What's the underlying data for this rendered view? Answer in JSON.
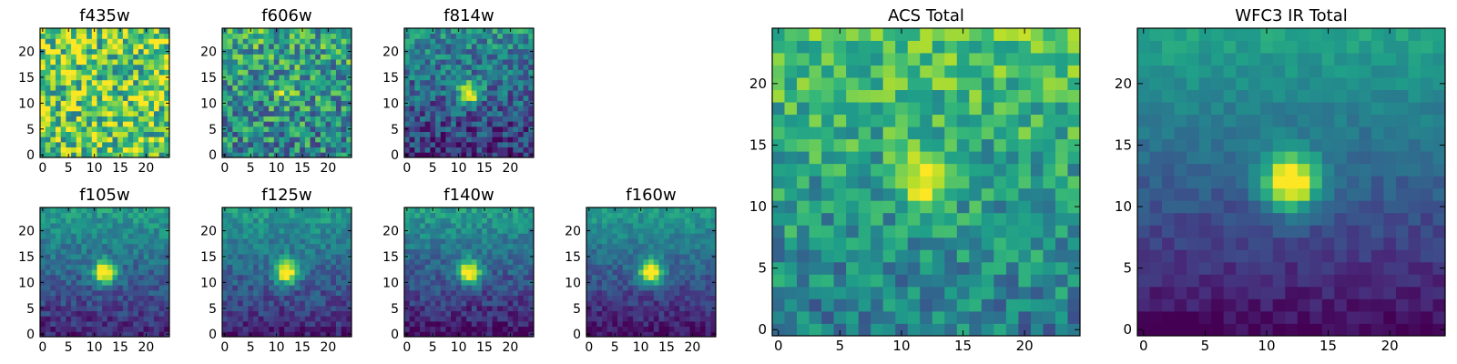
{
  "figure": {
    "description_free": true
  },
  "chart_data": [
    {
      "type": "heatmap",
      "title": "f435w",
      "grid_size": 25,
      "xlim": [
        -0.5,
        24.5
      ],
      "ylim": [
        -0.5,
        24.5
      ],
      "x_ticks": [
        0,
        5,
        10,
        15,
        20
      ],
      "y_ticks": [
        0,
        5,
        10,
        15,
        20
      ],
      "pattern": "noise",
      "source_center": [
        12,
        12
      ],
      "source_strength": 0.0,
      "background_high": 0.75,
      "bottom_gradient": 0.0,
      "noise": 0.35,
      "seed": 11
    },
    {
      "type": "heatmap",
      "title": "f606w",
      "grid_size": 25,
      "xlim": [
        -0.5,
        24.5
      ],
      "ylim": [
        -0.5,
        24.5
      ],
      "x_ticks": [
        0,
        5,
        10,
        15,
        20
      ],
      "y_ticks": [
        0,
        5,
        10,
        15,
        20
      ],
      "pattern": "faint_source",
      "source_center": [
        12,
        12
      ],
      "source_strength": 0.25,
      "background_high": 0.6,
      "bottom_gradient": 0.15,
      "noise": 0.3,
      "seed": 23
    },
    {
      "type": "heatmap",
      "title": "f814w",
      "grid_size": 25,
      "xlim": [
        -0.5,
        24.5
      ],
      "ylim": [
        -0.5,
        24.5
      ],
      "x_ticks": [
        0,
        5,
        10,
        15,
        20
      ],
      "y_ticks": [
        0,
        5,
        10,
        15,
        20
      ],
      "pattern": "source",
      "source_center": [
        12,
        12
      ],
      "source_strength": 0.7,
      "background_high": 0.5,
      "bottom_gradient": 0.35,
      "noise": 0.22,
      "seed": 37
    },
    {
      "type": "heatmap",
      "title": "f105w",
      "grid_size": 25,
      "xlim": [
        -0.5,
        24.5
      ],
      "ylim": [
        -0.5,
        24.5
      ],
      "x_ticks": [
        0,
        5,
        10,
        15,
        20
      ],
      "y_ticks": [
        0,
        5,
        10,
        15,
        20
      ],
      "pattern": "source",
      "source_center": [
        12,
        12
      ],
      "source_strength": 0.8,
      "background_high": 0.55,
      "bottom_gradient": 0.45,
      "noise": 0.12,
      "seed": 41
    },
    {
      "type": "heatmap",
      "title": "f125w",
      "grid_size": 25,
      "xlim": [
        -0.5,
        24.5
      ],
      "ylim": [
        -0.5,
        24.5
      ],
      "x_ticks": [
        0,
        5,
        10,
        15,
        20
      ],
      "y_ticks": [
        0,
        5,
        10,
        15,
        20
      ],
      "pattern": "source",
      "source_center": [
        12,
        12
      ],
      "source_strength": 0.8,
      "background_high": 0.55,
      "bottom_gradient": 0.45,
      "noise": 0.12,
      "seed": 53
    },
    {
      "type": "heatmap",
      "title": "f140w",
      "grid_size": 25,
      "xlim": [
        -0.5,
        24.5
      ],
      "ylim": [
        -0.5,
        24.5
      ],
      "x_ticks": [
        0,
        5,
        10,
        15,
        20
      ],
      "y_ticks": [
        0,
        5,
        10,
        15,
        20
      ],
      "pattern": "source",
      "source_center": [
        12,
        12
      ],
      "source_strength": 0.8,
      "background_high": 0.55,
      "bottom_gradient": 0.5,
      "noise": 0.12,
      "seed": 67
    },
    {
      "type": "heatmap",
      "title": "f160w",
      "grid_size": 25,
      "xlim": [
        -0.5,
        24.5
      ],
      "ylim": [
        -0.5,
        24.5
      ],
      "x_ticks": [
        0,
        5,
        10,
        15,
        20
      ],
      "y_ticks": [
        0,
        5,
        10,
        15,
        20
      ],
      "pattern": "source",
      "source_center": [
        12,
        12
      ],
      "source_strength": 0.85,
      "background_high": 0.55,
      "bottom_gradient": 0.5,
      "noise": 0.1,
      "seed": 79
    },
    {
      "type": "heatmap",
      "title": "ACS Total",
      "grid_size": 25,
      "xlim": [
        -0.5,
        24.5
      ],
      "ylim": [
        -0.5,
        24.5
      ],
      "x_ticks": [
        0,
        5,
        10,
        15,
        20
      ],
      "y_ticks": [
        0,
        5,
        10,
        15,
        20
      ],
      "pattern": "source",
      "source_center": [
        12,
        12
      ],
      "source_strength": 0.45,
      "background_high": 0.72,
      "bottom_gradient": 0.3,
      "noise": 0.2,
      "seed": 89
    },
    {
      "type": "heatmap",
      "title": "WFC3 IR Total",
      "grid_size": 25,
      "xlim": [
        -0.5,
        24.5
      ],
      "ylim": [
        -0.5,
        24.5
      ],
      "x_ticks": [
        0,
        5,
        10,
        15,
        20
      ],
      "y_ticks": [
        0,
        5,
        10,
        15,
        20
      ],
      "pattern": "source",
      "source_center": [
        12,
        12
      ],
      "source_strength": 0.85,
      "background_high": 0.58,
      "bottom_gradient": 0.55,
      "noise": 0.06,
      "seed": 97
    }
  ]
}
